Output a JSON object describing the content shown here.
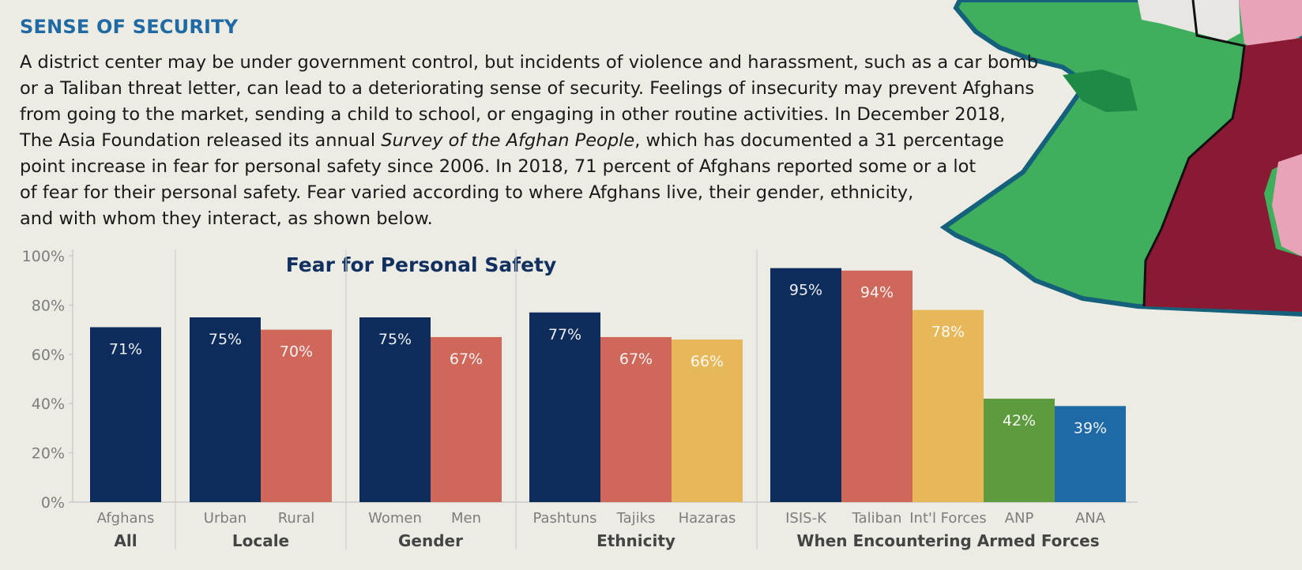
{
  "colors": {
    "heading": "#1f6aa3",
    "navy": "#0d2c5c",
    "coral": "#cf675a",
    "yellow": "#e6b85a",
    "green": "#5e9a3e",
    "blue": "#1f6aa6",
    "axis_text": "#7d7d7d",
    "group_text": "#444444",
    "title_text": "#12305f",
    "map_green": "#3fae5d",
    "map_dark_green": "#1f8a45",
    "map_maroon": "#8a1a34",
    "map_pink": "#e9a3b9",
    "map_border": "#15607a"
  },
  "heading": "SENSE OF SECURITY",
  "intro": {
    "lines": [
      "A district center may be under government control, but incidents of violence and harassment, such as a car bomb",
      "or a Taliban threat letter, can lead to a deteriorating sense of security. Feelings of insecurity may prevent Afghans",
      "from going to the market, sending a child to school, or engaging in other routine activities. In December 2018,"
    ],
    "line4_before": "The Asia Foundation released its annual ",
    "line4_italic": "Survey of the Afghan People",
    "line4_after": ", which has documented a 31 percentage",
    "lines_rest": [
      "point increase in fear for personal safety since 2006. In 2018, 71 percent of Afghans reported some or a lot",
      "of fear for their personal safety. Fear varied according to where Afghans live, their gender, ethnicity,",
      "and with whom they interact, as shown below."
    ]
  },
  "chart_data": {
    "type": "bar",
    "title": "Fear for Personal Safety",
    "ylim": [
      0,
      100
    ],
    "yticks": [
      0,
      20,
      40,
      60,
      80,
      100
    ],
    "ytick_labels": [
      "0%",
      "20%",
      "40%",
      "60%",
      "80%",
      "100%"
    ],
    "grid": false,
    "groups": [
      {
        "name": "All",
        "bars": [
          {
            "label": "Afghans",
            "value": 71,
            "value_label": "71%",
            "color": "navy"
          }
        ]
      },
      {
        "name": "Locale",
        "bars": [
          {
            "label": "Urban",
            "value": 75,
            "value_label": "75%",
            "color": "navy"
          },
          {
            "label": "Rural",
            "value": 70,
            "value_label": "70%",
            "color": "coral"
          }
        ]
      },
      {
        "name": "Gender",
        "bars": [
          {
            "label": "Women",
            "value": 75,
            "value_label": "75%",
            "color": "navy"
          },
          {
            "label": "Men",
            "value": 67,
            "value_label": "67%",
            "color": "coral"
          }
        ]
      },
      {
        "name": "Ethnicity",
        "bars": [
          {
            "label": "Pashtuns",
            "value": 77,
            "value_label": "77%",
            "color": "navy"
          },
          {
            "label": "Tajiks",
            "value": 67,
            "value_label": "67%",
            "color": "coral"
          },
          {
            "label": "Hazaras",
            "value": 66,
            "value_label": "66%",
            "color": "yellow"
          }
        ]
      },
      {
        "name": "When Encountering Armed Forces",
        "bars": [
          {
            "label": "ISIS-K",
            "value": 95,
            "value_label": "95%",
            "color": "navy"
          },
          {
            "label": "Taliban",
            "value": 94,
            "value_label": "94%",
            "color": "coral"
          },
          {
            "label": "Int'l Forces",
            "value": 78,
            "value_label": "78%",
            "color": "yellow"
          },
          {
            "label": "ANP",
            "value": 42,
            "value_label": "42%",
            "color": "green"
          },
          {
            "label": "ANA",
            "value": 39,
            "value_label": "39%",
            "color": "blue"
          }
        ]
      }
    ]
  }
}
